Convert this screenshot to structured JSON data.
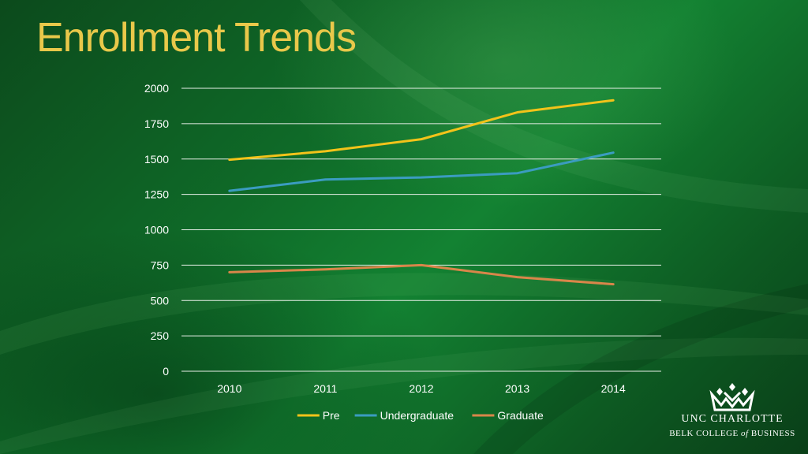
{
  "slide": {
    "title": "Enrollment Trends"
  },
  "colors": {
    "background": "#0f6a28",
    "title": "#e9c84a",
    "gridline": "#e8efe8"
  },
  "chart_data": {
    "type": "line",
    "title": "",
    "xlabel": "",
    "ylabel": "",
    "categories": [
      "2010",
      "2011",
      "2012",
      "2013",
      "2014"
    ],
    "ylim": [
      0,
      2000
    ],
    "yticks": [
      "0",
      "250",
      "500",
      "750",
      "1000",
      "1250",
      "1500",
      "1750",
      "2000"
    ],
    "grid": true,
    "legend_position": "bottom",
    "series": [
      {
        "name": "Pre",
        "color": "#f2c31a",
        "values": [
          1495,
          1555,
          1640,
          1830,
          1915
        ]
      },
      {
        "name": "Undergraduate",
        "color": "#3b9cc0",
        "values": [
          1275,
          1355,
          1370,
          1400,
          1545
        ]
      },
      {
        "name": "Graduate",
        "color": "#d9864a",
        "values": [
          700,
          720,
          750,
          665,
          615
        ]
      }
    ]
  },
  "logo": {
    "line1": "UNC CHARLOTTE",
    "line2_pre": "BELK COLLEGE ",
    "line2_em": "of",
    "line2_post": " BUSINESS",
    "icon": "crown-logo-icon"
  }
}
